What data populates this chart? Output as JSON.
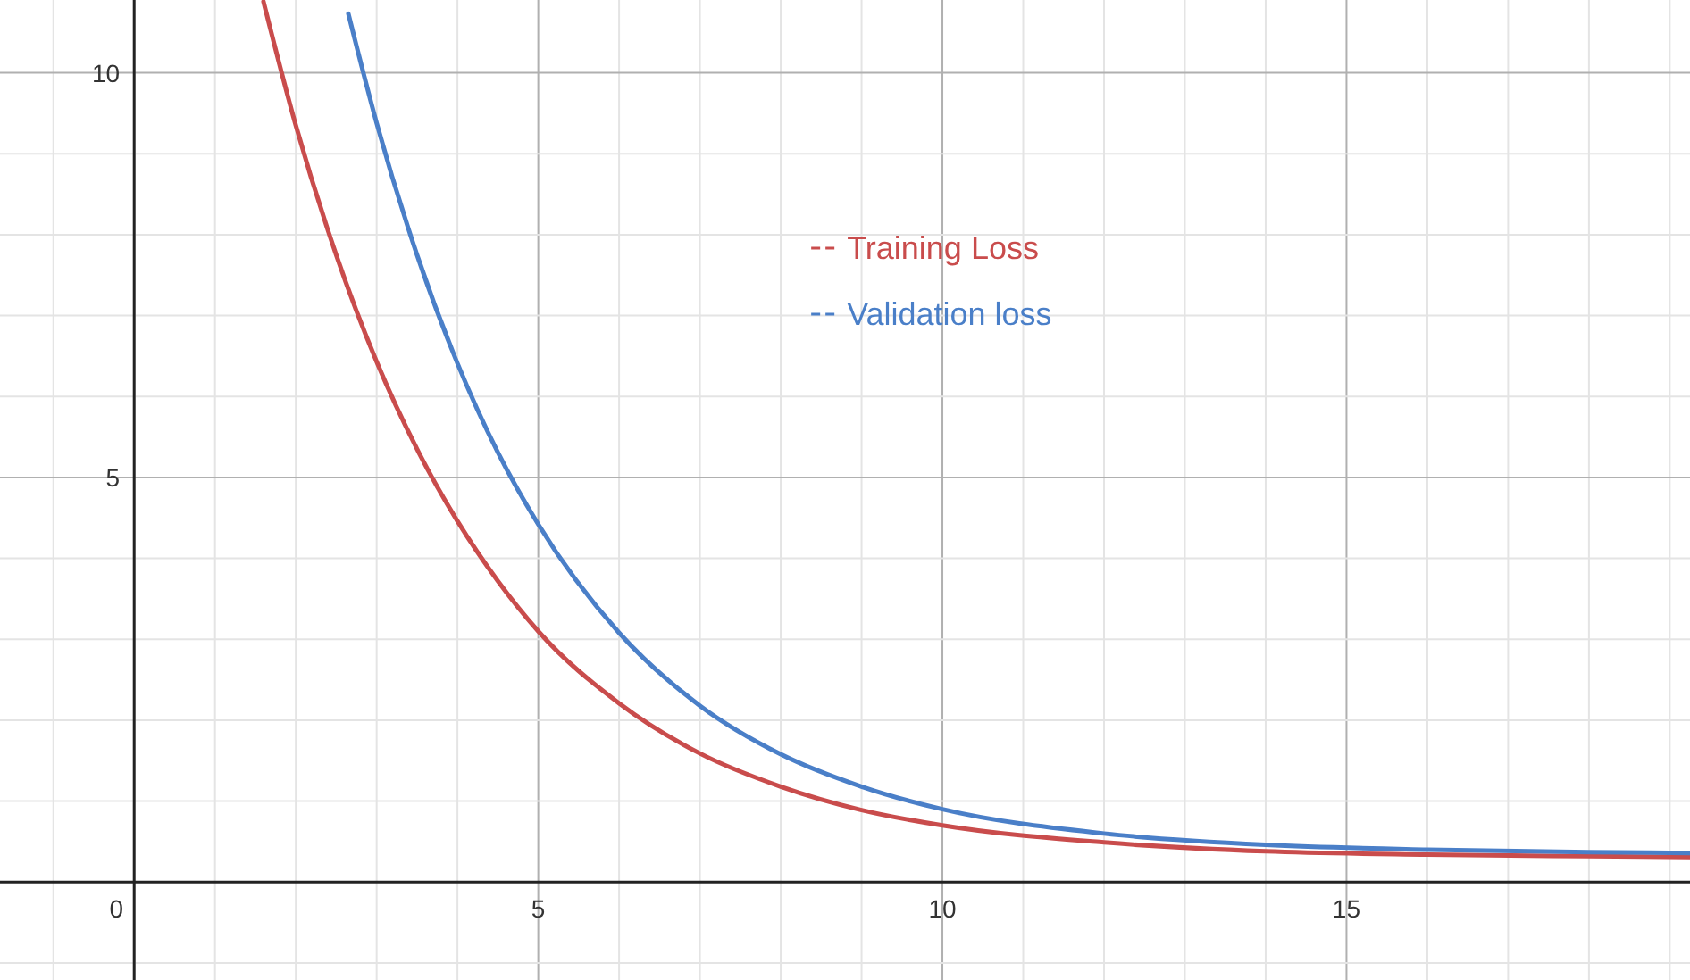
{
  "chart_data": {
    "type": "line",
    "xlim": [
      -1.66,
      19.25
    ],
    "ylim": [
      -1.21,
      10.9
    ],
    "xticks": [
      {
        "value": -1,
        "label": null
      },
      0,
      {
        "value": 1,
        "label": null
      },
      {
        "value": 2,
        "label": null
      },
      {
        "value": 3,
        "label": null
      },
      {
        "value": 4,
        "label": null
      },
      5,
      {
        "value": 6,
        "label": null
      },
      {
        "value": 7,
        "label": null
      },
      {
        "value": 8,
        "label": null
      },
      {
        "value": 9,
        "label": null
      },
      10,
      {
        "value": 11,
        "label": null
      },
      {
        "value": 12,
        "label": null
      },
      {
        "value": 13,
        "label": null
      },
      {
        "value": 14,
        "label": null
      },
      15,
      {
        "value": 16,
        "label": null
      },
      {
        "value": 17,
        "label": null
      },
      {
        "value": 18,
        "label": null
      },
      {
        "value": 19,
        "label": null
      }
    ],
    "yticks": [
      {
        "value": -1,
        "label": null
      },
      {
        "value": 1,
        "label": null
      },
      {
        "value": 2,
        "label": null
      },
      {
        "value": 3,
        "label": null
      },
      {
        "value": 4,
        "label": null
      },
      5,
      {
        "value": 6,
        "label": null
      },
      {
        "value": 7,
        "label": null
      },
      {
        "value": 8,
        "label": null
      },
      {
        "value": 9,
        "label": null
      },
      10
    ],
    "grid": true,
    "legend": "top",
    "line_style": "solid",
    "marker": "none",
    "series": [
      {
        "name": "Training Loss",
        "color": "#c94c4c",
        "x": [
          1.6,
          2,
          2.5,
          3,
          3.5,
          4,
          4.5,
          5,
          6,
          7,
          8,
          9,
          10,
          12,
          14,
          16,
          18,
          19.25
        ],
        "values": [
          10.88,
          9.35,
          7.75,
          6.43,
          5.35,
          4.46,
          3.72,
          3.1,
          2.21,
          1.59,
          1.18,
          0.89,
          0.7,
          0.49,
          0.38,
          0.34,
          0.32,
          0.31
        ]
      },
      {
        "name": "Validation loss",
        "color": "#4a7fc8",
        "x": [
          2.65,
          3,
          3.5,
          4,
          4.5,
          5,
          6,
          7,
          8,
          9,
          10,
          12,
          14,
          16,
          18,
          19.25
        ],
        "values": [
          10.73,
          9.38,
          7.75,
          6.41,
          5.31,
          4.42,
          3.08,
          2.18,
          1.58,
          1.18,
          0.9,
          0.6,
          0.46,
          0.4,
          0.37,
          0.36
        ]
      }
    ]
  }
}
